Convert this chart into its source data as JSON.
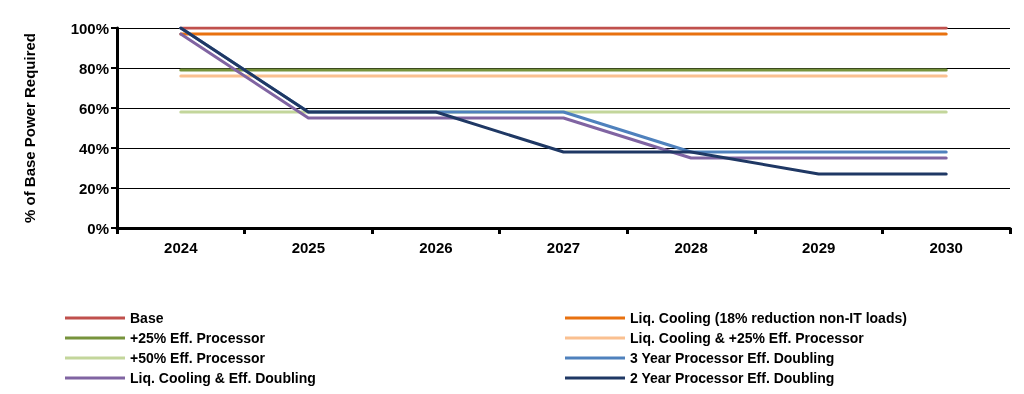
{
  "chart_data": {
    "type": "line",
    "ylabel": "% of Base Power Required",
    "categories": [
      "2024",
      "2025",
      "2026",
      "2027",
      "2028",
      "2029",
      "2030"
    ],
    "ylim": [
      0,
      100
    ],
    "yticks": [
      {
        "value": 0,
        "label": "0%"
      },
      {
        "value": 20,
        "label": "20%"
      },
      {
        "value": 40,
        "label": "40%"
      },
      {
        "value": 60,
        "label": "60%"
      },
      {
        "value": 80,
        "label": "80%"
      },
      {
        "value": 100,
        "label": "100%"
      }
    ],
    "grid": "y",
    "legend": "bottom",
    "marker": "none",
    "line_style": "solid",
    "series": [
      {
        "name": "Base",
        "color": "#c0504d",
        "values": [
          100,
          100,
          100,
          100,
          100,
          100,
          100
        ]
      },
      {
        "name": "Liq. Cooling (18% reduction non-IT loads)",
        "color": "#e8710f",
        "values": [
          97,
          97,
          97,
          97,
          97,
          97,
          97
        ]
      },
      {
        "name": "+25% Eff. Processor",
        "color": "#77933c",
        "values": [
          79,
          79,
          79,
          79,
          79,
          79,
          79
        ]
      },
      {
        "name": "Liq. Cooling & +25% Eff. Processor",
        "color": "#fac090",
        "values": [
          76,
          76,
          76,
          76,
          76,
          76,
          76
        ]
      },
      {
        "name": "+50% Eff. Processor",
        "color": "#c3d69b",
        "values": [
          58,
          58,
          58,
          58,
          58,
          58,
          58
        ]
      },
      {
        "name": "3 Year Processor Eff. Doubling",
        "color": "#4f81bd",
        "values": [
          100,
          58,
          58,
          58,
          38,
          38,
          38
        ]
      },
      {
        "name": "Liq. Cooling & Eff. Doubling",
        "color": "#8064a2",
        "values": [
          97,
          55,
          55,
          55,
          35,
          35,
          35
        ]
      },
      {
        "name": "2 Year Processor Eff. Doubling",
        "color": "#1f3864",
        "values": [
          100,
          58,
          58,
          38,
          38,
          27,
          27
        ]
      }
    ]
  }
}
